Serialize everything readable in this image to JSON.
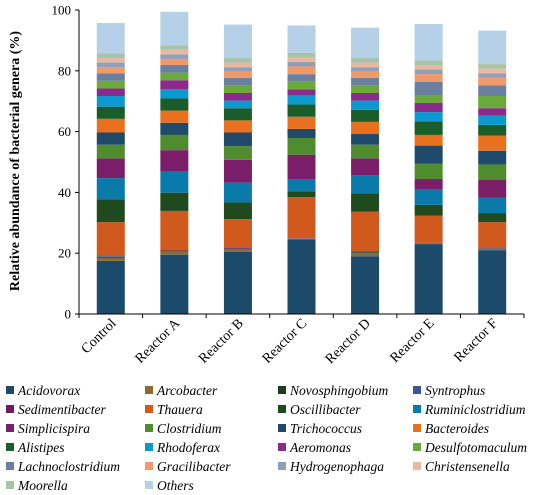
{
  "chart_data": {
    "type": "bar",
    "stacked": true,
    "ylabel": "Relative abundance of bacterial genera (%)",
    "xlabel": "",
    "ylim": [
      0,
      100
    ],
    "yticks": [
      0,
      20,
      40,
      60,
      80,
      100
    ],
    "grid": false,
    "legend_position": "bottom",
    "categories": [
      "Control",
      "Reactor A",
      "Reactor B",
      "Reactor C",
      "Reactor D",
      "Reactor E",
      "Reactor F"
    ],
    "series": [
      {
        "name": "Acidovorax",
        "color": "#1b4a6b",
        "values": [
          17.5,
          19.5,
          20.5,
          24.5,
          19.0,
          23.0,
          21.0
        ]
      },
      {
        "name": "Arcobacter",
        "color": "#8b6b2e",
        "values": [
          1.0,
          0.8,
          0.6,
          0.1,
          1.0,
          0.1,
          0.4
        ]
      },
      {
        "name": "Novosphingobium",
        "color": "#1e3d1e",
        "values": [
          0.3,
          0.2,
          0.2,
          0.1,
          0.3,
          0.1,
          0.1
        ]
      },
      {
        "name": "Syntrophus",
        "color": "#3a5795",
        "values": [
          0.2,
          0.2,
          0.2,
          0.1,
          0.2,
          0.1,
          0.1
        ]
      },
      {
        "name": "Sedimentibacter",
        "color": "#6b1e5a",
        "values": [
          0.2,
          0.2,
          0.2,
          0.1,
          0.2,
          0.1,
          0.1
        ]
      },
      {
        "name": "Thauera",
        "color": "#d05a1e",
        "values": [
          11.0,
          13.0,
          9.5,
          13.5,
          13.0,
          9.0,
          8.5
        ]
      },
      {
        "name": "Oscillibacter",
        "color": "#1e4a1e",
        "values": [
          7.5,
          6.0,
          5.5,
          2.0,
          6.0,
          3.5,
          3.0
        ]
      },
      {
        "name": "Ruminiclostridium",
        "color": "#0a7aaa",
        "values": [
          7.0,
          7.0,
          6.5,
          4.0,
          6.0,
          5.0,
          5.0
        ]
      },
      {
        "name": "Simplicispira",
        "color": "#7a1e6a",
        "values": [
          6.5,
          7.0,
          7.5,
          8.0,
          5.5,
          3.5,
          6.0
        ]
      },
      {
        "name": "Clostridium",
        "color": "#4e8c2e",
        "values": [
          4.5,
          5.0,
          4.5,
          5.5,
          4.5,
          5.0,
          5.0
        ]
      },
      {
        "name": "Trichococcus",
        "color": "#1f4a6b",
        "values": [
          4.0,
          4.0,
          4.5,
          3.0,
          3.5,
          6.0,
          4.5
        ]
      },
      {
        "name": "Bacteroides",
        "color": "#e8701e",
        "values": [
          4.5,
          4.0,
          4.0,
          4.0,
          4.0,
          3.5,
          5.0
        ]
      },
      {
        "name": "Alistipes",
        "color": "#1a5d2a",
        "values": [
          4.0,
          4.0,
          4.0,
          4.0,
          4.0,
          4.5,
          3.5
        ]
      },
      {
        "name": "Rhodoferax",
        "color": "#0a9ad0",
        "values": [
          3.5,
          3.0,
          2.5,
          3.0,
          3.0,
          3.0,
          3.0
        ]
      },
      {
        "name": "Aeromonas",
        "color": "#8a2a8a",
        "values": [
          2.5,
          3.0,
          2.5,
          2.0,
          2.5,
          3.0,
          2.5
        ]
      },
      {
        "name": "Desulfotomaculum",
        "color": "#6aaa3a",
        "values": [
          2.5,
          2.5,
          2.5,
          2.5,
          2.5,
          2.5,
          4.0
        ]
      },
      {
        "name": "Lachnoclostridium",
        "color": "#6b7f9e",
        "values": [
          2.5,
          2.5,
          2.5,
          2.5,
          2.5,
          4.5,
          3.5
        ]
      },
      {
        "name": "Gracilibacter",
        "color": "#f09a6a",
        "values": [
          2.0,
          2.0,
          2.0,
          2.5,
          2.0,
          2.5,
          2.5
        ]
      },
      {
        "name": "Hydrogenophaga",
        "color": "#8fa0b8",
        "values": [
          1.5,
          1.5,
          1.5,
          1.5,
          1.5,
          1.5,
          1.5
        ]
      },
      {
        "name": "Christensenella",
        "color": "#e8b8a0",
        "values": [
          1.5,
          1.5,
          1.5,
          1.5,
          1.5,
          1.5,
          1.5
        ]
      },
      {
        "name": "Moorella",
        "color": "#a8c4a8",
        "values": [
          1.5,
          1.5,
          1.5,
          1.5,
          1.5,
          1.5,
          1.5
        ]
      },
      {
        "name": "Others",
        "color": "#b6d0e8",
        "values": [
          10.0,
          11.0,
          11.0,
          9.0,
          10.0,
          12.0,
          11.0
        ]
      }
    ],
    "legend_series_order": [
      [
        "Acidovorax",
        "Arcobacter",
        "Novosphingobium",
        "Syntrophus"
      ],
      [
        "Sedimentibacter",
        "Thauera",
        "Oscillibacter",
        "Ruminiclostridium"
      ],
      [
        "Simplicispira",
        "Clostridium",
        "Trichococcus",
        "Bacteroides"
      ],
      [
        "Alistipes",
        "Rhodoferax",
        "Aeromonas",
        "Desulfotomaculum"
      ],
      [
        "Lachnoclostridium",
        "Gracilibacter",
        "Hydrogenophaga",
        "Christensenella"
      ],
      [
        "Moorella",
        "Others"
      ]
    ]
  }
}
